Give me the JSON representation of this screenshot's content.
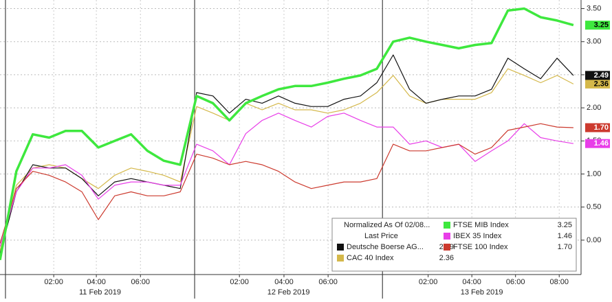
{
  "chart_data": {
    "type": "line",
    "legend_title": "Normalized As Of 02/08...",
    "legend_subtitle": "Last Price",
    "x": [
      0,
      0.75,
      1.5,
      2.25,
      3,
      3.75,
      4.5,
      5.25,
      6,
      6.75,
      7.5,
      8.25,
      9,
      9.75,
      10.5,
      11.25,
      12,
      12.75,
      13.5,
      14.25,
      15,
      15.75,
      16.5,
      17.25,
      18,
      18.75,
      19.5,
      20.25,
      21,
      21.75,
      22.5,
      23.25,
      24,
      24.75,
      25.5,
      26.25
    ],
    "xlim": [
      0,
      26.6
    ],
    "xticks": [
      {
        "value": 2.46,
        "label": "02:00"
      },
      {
        "value": 4.41,
        "label": "04:00"
      },
      {
        "value": 6.43,
        "label": "06:00"
      },
      {
        "value": 10.96,
        "label": "02:00"
      },
      {
        "value": 13.0,
        "label": "04:00"
      },
      {
        "value": 15.02,
        "label": "06:00"
      },
      {
        "value": 19.6,
        "label": "02:00"
      },
      {
        "value": 21.6,
        "label": "04:00"
      },
      {
        "value": 23.6,
        "label": "06:00"
      },
      {
        "value": 25.6,
        "label": "08:00"
      }
    ],
    "day_ticks": [
      {
        "value": 0.25,
        "label": "11 Feb 2019"
      },
      {
        "value": 8.91,
        "label": "12 Feb 2019"
      },
      {
        "value": 17.51,
        "label": "13 Feb 2019"
      }
    ],
    "ylim": [
      -0.52,
      3.63
    ],
    "yticks": [
      {
        "value": 0,
        "label": "0.00"
      },
      {
        "value": 0.5,
        "label": "0.50"
      },
      {
        "value": 1,
        "label": "1.00"
      },
      {
        "value": 1.5,
        "label": "1.50"
      },
      {
        "value": 2,
        "label": "2.00"
      },
      {
        "value": 2.5,
        "label": "2.50"
      },
      {
        "value": 3,
        "label": "3.00"
      },
      {
        "value": 3.5,
        "label": "3.50"
      }
    ],
    "grid": true,
    "series": [
      {
        "name": "CAC 40 Index",
        "color": "#d4b84a",
        "last_price_label": "2.36",
        "values": [
          -0.16,
          0.83,
          1.09,
          1.14,
          1.09,
          0.93,
          0.78,
          0.98,
          1.09,
          1.04,
          0.98,
          0.88,
          2.02,
          1.92,
          1.81,
          2.07,
          1.97,
          2.07,
          1.97,
          1.97,
          1.92,
          1.97,
          2.07,
          2.23,
          2.49,
          2.18,
          2.07,
          2.13,
          2.13,
          2.13,
          2.23,
          2.59,
          2.49,
          2.38,
          2.49,
          2.36
        ]
      },
      {
        "name": "Deutsche Boerse AG...",
        "color": "#111111",
        "last_price_label": "2.49",
        "values": [
          -0.2,
          0.73,
          1.14,
          1.09,
          1.09,
          0.93,
          0.67,
          0.88,
          0.93,
          0.88,
          0.83,
          0.78,
          2.23,
          2.18,
          1.92,
          2.13,
          2.07,
          2.18,
          2.07,
          2.02,
          2.02,
          2.13,
          2.18,
          2.38,
          2.8,
          2.28,
          2.07,
          2.13,
          2.18,
          2.18,
          2.28,
          2.75,
          2.59,
          2.44,
          2.75,
          2.49
        ]
      },
      {
        "name": "IBEX 35 Index",
        "color": "#e83ee8",
        "last_price_label": "1.46",
        "values": [
          -0.1,
          0.73,
          1.09,
          1.09,
          1.14,
          0.98,
          0.62,
          0.83,
          0.88,
          0.88,
          0.83,
          0.83,
          1.45,
          1.35,
          1.14,
          1.61,
          1.81,
          1.92,
          1.81,
          1.71,
          1.87,
          1.92,
          1.81,
          1.71,
          1.71,
          1.45,
          1.5,
          1.4,
          1.45,
          1.19,
          1.35,
          1.5,
          1.76,
          1.55,
          1.5,
          1.46
        ]
      },
      {
        "name": "FTSE 100 Index",
        "color": "#cc3a2e",
        "last_price_label": "1.70",
        "values": [
          -0.05,
          0.78,
          1.04,
          0.98,
          0.88,
          0.73,
          0.31,
          0.67,
          0.73,
          0.67,
          0.67,
          0.73,
          1.3,
          1.24,
          1.14,
          1.19,
          1.14,
          1.04,
          0.88,
          0.78,
          0.83,
          0.88,
          0.88,
          0.93,
          1.45,
          1.35,
          1.35,
          1.4,
          1.45,
          1.3,
          1.4,
          1.66,
          1.71,
          1.76,
          1.71,
          1.7
        ]
      },
      {
        "name": "FTSE MIB Index",
        "color": "#3ee83e",
        "last_price_label": "3.25",
        "values": [
          -0.3,
          1.04,
          1.6,
          1.55,
          1.65,
          1.65,
          1.4,
          1.5,
          1.6,
          1.35,
          1.2,
          1.14,
          2.18,
          2.07,
          1.81,
          2.07,
          2.18,
          2.28,
          2.33,
          2.33,
          2.38,
          2.44,
          2.49,
          2.59,
          3.0,
          3.06,
          3.0,
          2.95,
          2.9,
          2.95,
          2.98,
          3.47,
          3.5,
          3.37,
          3.32,
          3.25
        ]
      }
    ]
  }
}
